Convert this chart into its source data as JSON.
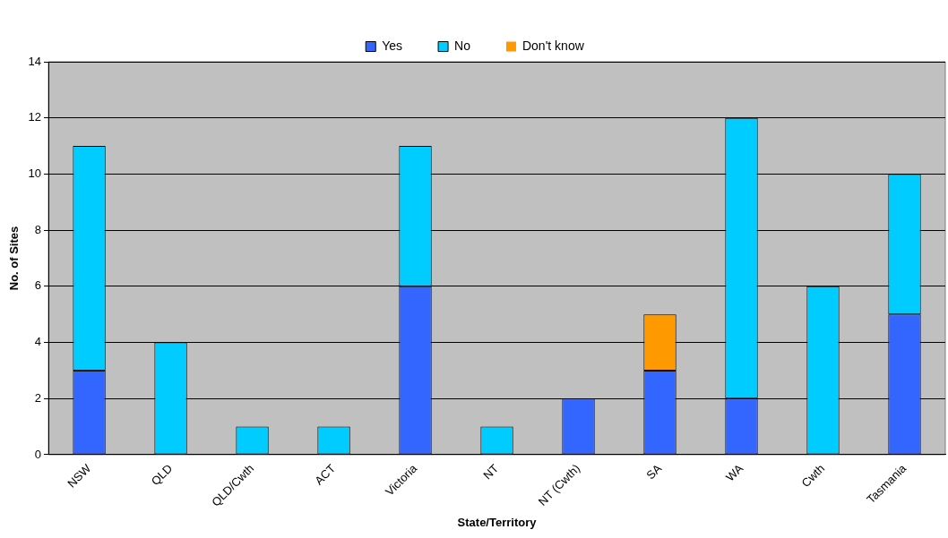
{
  "chart_data": {
    "type": "bar",
    "stacked": true,
    "xlabel": "State/Territory",
    "ylabel": "No. of Sites",
    "categories": [
      "NSW",
      "QLD",
      "QLD/Cwth",
      "ACT",
      "Victoria",
      "NT",
      "NT (Cwth)",
      "SA",
      "WA",
      "Cwth",
      "Tasmania"
    ],
    "series": [
      {
        "name": "Yes",
        "color": "#3366ff",
        "values": [
          3,
          0,
          0,
          0,
          6,
          0,
          2,
          3,
          2,
          0,
          5
        ]
      },
      {
        "name": "No",
        "color": "#00ccff",
        "values": [
          8,
          4,
          1,
          1,
          5,
          1,
          0,
          0,
          10,
          6,
          5
        ]
      },
      {
        "name": "Don't know",
        "color": "#ff9900",
        "values": [
          0,
          0,
          0,
          0,
          0,
          0,
          0,
          2,
          0,
          0,
          0
        ]
      }
    ],
    "ylim": [
      0,
      14
    ],
    "yticks": [
      0,
      2,
      4,
      6,
      8,
      10,
      12,
      14
    ],
    "grid": "y",
    "legend": "top"
  }
}
